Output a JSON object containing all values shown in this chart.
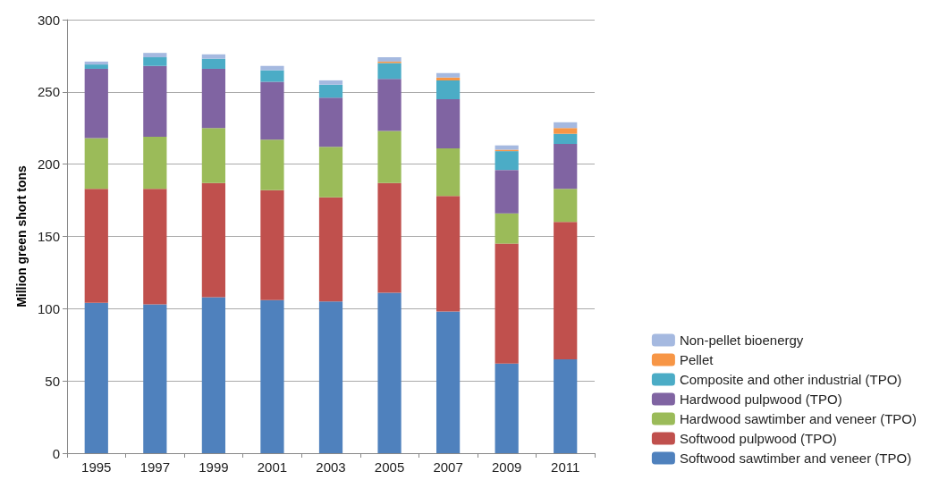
{
  "chart_data": {
    "type": "bar",
    "stacked": true,
    "ylabel": "Million green short tons",
    "categories": [
      "1995",
      "1997",
      "1999",
      "2001",
      "2003",
      "2005",
      "2007",
      "2009",
      "2011"
    ],
    "series": [
      {
        "name": "Softwood sawtimber and veneer (TPO)",
        "color": "#4f81bd",
        "values": [
          104,
          103,
          108,
          106,
          105,
          111,
          98,
          62,
          65
        ]
      },
      {
        "name": "Softwood pulpwood (TPO)",
        "color": "#c0504d",
        "values": [
          79,
          80,
          79,
          76,
          72,
          76,
          80,
          83,
          95
        ]
      },
      {
        "name": "Hardwood sawtimber and veneer (TPO)",
        "color": "#9bbb59",
        "values": [
          35,
          36,
          38,
          35,
          35,
          36,
          33,
          21,
          23
        ]
      },
      {
        "name": "Hardwood pulpwood (TPO)",
        "color": "#8064a2",
        "values": [
          48,
          49,
          41,
          40,
          34,
          36,
          34,
          30,
          31
        ]
      },
      {
        "name": "Composite and other industrial (TPO)",
        "color": "#4bacc6",
        "values": [
          3,
          6,
          7,
          8,
          9,
          11,
          13,
          13,
          7
        ]
      },
      {
        "name": "Pellet",
        "color": "#f79646",
        "values": [
          0,
          0,
          0,
          0,
          0,
          1,
          2,
          1,
          4
        ]
      },
      {
        "name": "Non-pellet bioenergy",
        "color": "#a5b9e0",
        "values": [
          2,
          3,
          3,
          3,
          3,
          3,
          3,
          3,
          4
        ]
      }
    ],
    "ylim": [
      0,
      300
    ],
    "yticks": [
      0,
      50,
      100,
      150,
      200,
      250,
      300
    ],
    "grid": "y",
    "legend": "bottom right"
  }
}
